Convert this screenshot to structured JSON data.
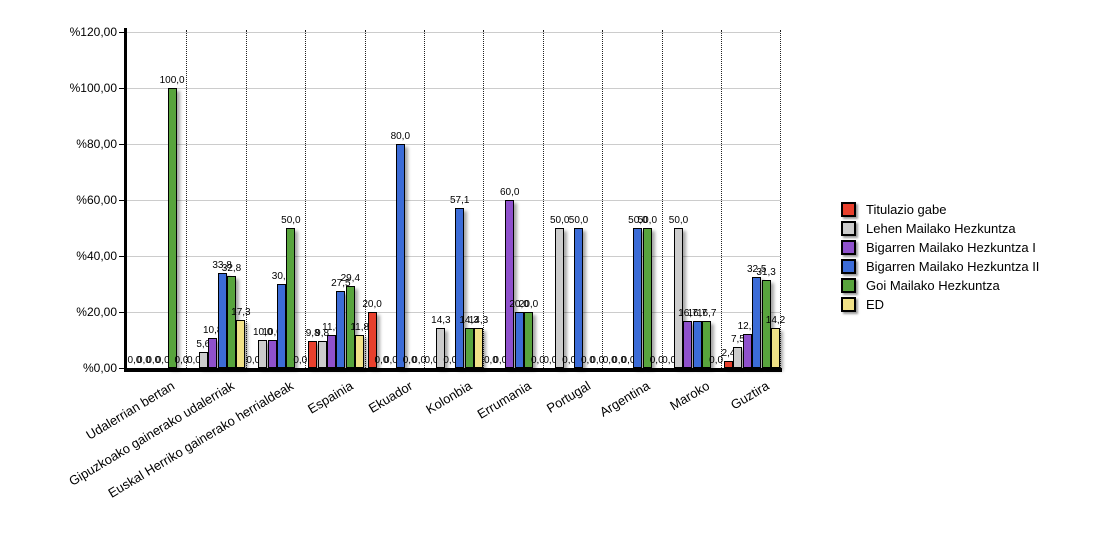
{
  "chart_data": {
    "type": "bar",
    "title": "",
    "xlabel": "",
    "ylabel": "",
    "categories": [
      "Udalerrian bertan",
      "Gipuzkoako gainerako udalerriak",
      "Euskal Herriko gainerako herrialdeak",
      "Espainia",
      "Ekuador",
      "Kolonbia",
      "Errumania",
      "Portugal",
      "Argentina",
      "Maroko",
      "Guztira"
    ],
    "series": [
      {
        "name": "Titulazio gabe",
        "color": "#e8402d",
        "values": [
          0,
          0,
          0,
          9.8,
          20,
          0,
          0,
          0,
          0,
          0,
          2.4
        ],
        "labels": [
          "0,0",
          "0,0",
          "0,0",
          "9,8",
          "20,0",
          "0,0",
          "0,0",
          "0,0",
          "0,0",
          "0,0",
          "2,4"
        ]
      },
      {
        "name": "Lehen Mailako Hezkuntza",
        "color": "#cccccc",
        "values": [
          0,
          5.6,
          10,
          9.8,
          0,
          14.3,
          0,
          50,
          0,
          50,
          7.5
        ],
        "labels": [
          "0,0",
          "5,6",
          "10,0",
          "9,8",
          "0,0",
          "14,3",
          "0,0",
          "50,0",
          "0,0",
          "50,0",
          "7,5"
        ]
      },
      {
        "name": "Bigarren Mailako Hezkuntza I",
        "color": "#8f51cc",
        "values": [
          0,
          10.8,
          10,
          11.8,
          0,
          0,
          60,
          0,
          0,
          16.7,
          12
        ],
        "labels": [
          "0,0",
          "10,8",
          "10,0",
          "11,8",
          "0,0",
          "0,0",
          "60,0",
          "0,0",
          "0,0",
          "16,7",
          "12,0"
        ]
      },
      {
        "name": "Bigarren Mailako Hezkuntza II",
        "color": "#3c6cd7",
        "values": [
          0,
          33.8,
          30,
          27.5,
          80,
          57.1,
          20,
          50,
          50,
          16.7,
          32.5
        ],
        "labels": [
          "0,0",
          "33,8",
          "30,0",
          "27,5",
          "80,0",
          "57,1",
          "20,0",
          "50,0",
          "50,0",
          "16,7",
          "32,5"
        ]
      },
      {
        "name": "Goi Mailako Hezkuntza",
        "color": "#58a43d",
        "values": [
          100,
          32.8,
          50,
          29.4,
          0,
          14.3,
          20,
          0,
          50,
          16.7,
          31.3
        ],
        "labels": [
          "100,0",
          "32,8",
          "50,0",
          "29,4",
          "0,0",
          "14,3",
          "20,0",
          "0,0",
          "50,0",
          "16,7",
          "31,3"
        ]
      },
      {
        "name": "ED",
        "color": "#f0e187",
        "values": [
          0,
          17.3,
          0,
          11.8,
          0,
          14.3,
          0,
          0,
          0,
          0,
          14.2
        ],
        "labels": [
          "0,0",
          "17,3",
          "0,0",
          "11,8",
          "0,0",
          "14,3",
          "0,0",
          "0,0",
          "0,0",
          "0,0",
          "14,2"
        ]
      }
    ],
    "y_axis": {
      "min": 0,
      "max": 120,
      "step": 20,
      "tick_labels": [
        "%0,00",
        "%20,00",
        "%40,00",
        "%60,00",
        "%80,00",
        "%100,00",
        "%120,00"
      ],
      "grid": true
    },
    "x_axis": {
      "separator_style": "dotted",
      "label_rotation_deg": -31
    },
    "legend_position": "right"
  }
}
